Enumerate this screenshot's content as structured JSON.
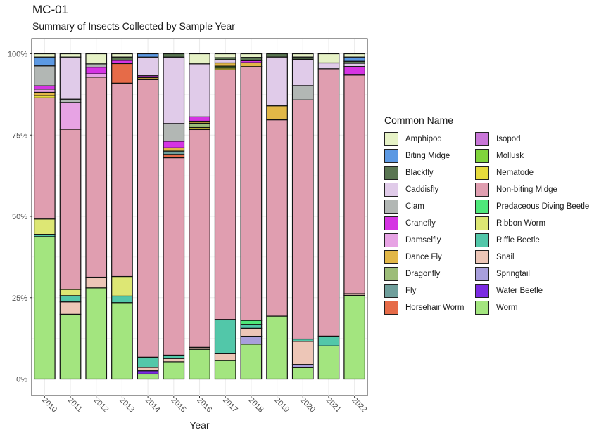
{
  "chart_data": {
    "type": "bar",
    "stacked": "percent",
    "title": "MC-01",
    "subtitle": "Summary of Insects Collected by Sample Year",
    "xlabel": "Year",
    "ylabel": "",
    "ylim": [
      0,
      1
    ],
    "yticks": [
      "0%",
      "25%",
      "50%",
      "75%",
      "100%"
    ],
    "legend_title": "Common Name",
    "legend_position": "right",
    "categories": [
      "2010",
      "2011",
      "2012",
      "2013",
      "2014",
      "2015",
      "2016",
      "2017",
      "2018",
      "2019",
      "2020",
      "2021",
      "2022"
    ],
    "series": [
      {
        "name": "Worm",
        "color": "#a3e57f",
        "values": [
          43.5,
          19.8,
          27.2,
          23.4,
          1.5,
          5.2,
          8.9,
          5.7,
          10.6,
          19.3,
          3.5,
          10.2,
          25.6
        ]
      },
      {
        "name": "Water Beetle",
        "color": "#7b2be2",
        "values": [
          0,
          0,
          0,
          0,
          1,
          0,
          0,
          0,
          0,
          0,
          0,
          0,
          0
        ]
      },
      {
        "name": "Springtail",
        "color": "#a89fdc",
        "values": [
          0,
          0,
          0,
          0,
          0,
          0,
          0,
          0,
          2.4,
          0,
          1,
          0,
          0
        ]
      },
      {
        "name": "Snail",
        "color": "#edc6b7",
        "values": [
          0,
          3.8,
          3.2,
          0,
          1,
          1,
          0.6,
          2.1,
          2.4,
          0,
          7.1,
          0,
          0.5
        ]
      },
      {
        "name": "Riffle Beetle",
        "color": "#52c7a9",
        "values": [
          0.7,
          1.9,
          0,
          2,
          3.1,
          1,
          0,
          10.5,
          1.2,
          0,
          0.7,
          3,
          0
        ]
      },
      {
        "name": "Ribbon Worm",
        "color": "#dde774",
        "values": [
          4.7,
          1.9,
          0,
          6,
          0,
          0,
          0,
          0,
          0,
          0,
          0,
          0,
          0
        ]
      },
      {
        "name": "Predaceous Diving Beetle",
        "color": "#4ee87a",
        "values": [
          0,
          0,
          0,
          0,
          0,
          0,
          0,
          0,
          1.2,
          0,
          0,
          0,
          0
        ]
      },
      {
        "name": "Non-biting Midge",
        "color": "#e09eb0",
        "values": [
          37,
          49,
          59.7,
          59.2,
          83.6,
          59.4,
          65.2,
          76.7,
          77.1,
          60.3,
          73.5,
          82.2,
          66.9
        ]
      },
      {
        "name": "Nematode",
        "color": "#e6db3d",
        "values": [
          0.7,
          0,
          0,
          0,
          0,
          0,
          0.6,
          0.5,
          0,
          0,
          0,
          0,
          0
        ]
      },
      {
        "name": "Mollusk",
        "color": "#80d43c",
        "values": [
          0,
          0,
          0,
          0,
          0,
          0,
          0,
          0.6,
          0,
          0,
          0,
          0,
          0
        ]
      },
      {
        "name": "Isopod",
        "color": "#c976d8",
        "values": [
          0,
          0,
          0,
          0,
          0,
          0,
          0,
          0,
          0,
          0,
          0,
          0,
          0
        ]
      },
      {
        "name": "Horsehair Worm",
        "color": "#e66b48",
        "values": [
          0,
          0,
          0,
          6,
          0,
          1,
          0,
          0,
          0,
          0,
          0,
          0,
          0
        ]
      },
      {
        "name": "Fly",
        "color": "#6f9f9c",
        "values": [
          0,
          0,
          0,
          0,
          0,
          1,
          0,
          0,
          0,
          0,
          0,
          0,
          0
        ]
      },
      {
        "name": "Dragonfly",
        "color": "#9dbd79",
        "values": [
          0,
          0,
          0,
          0,
          0,
          0,
          1.3,
          0,
          0,
          0,
          0,
          0,
          0
        ]
      },
      {
        "name": "Dance Fly",
        "color": "#e2b747",
        "values": [
          1,
          0,
          0,
          0,
          0.6,
          1,
          0.6,
          1,
          1.2,
          4.3,
          0,
          0,
          0
        ]
      },
      {
        "name": "Damselfly",
        "color": "#e7a3e4",
        "values": [
          1,
          8.2,
          1,
          0,
          0,
          0,
          0,
          0,
          0,
          0,
          0,
          0,
          0
        ]
      },
      {
        "name": "Cranefly",
        "color": "#d534e3",
        "values": [
          1,
          0,
          2,
          1,
          0.6,
          2,
          1.3,
          0,
          0.6,
          0,
          0,
          0,
          2.6
        ]
      },
      {
        "name": "Clam",
        "color": "#b2b7b4",
        "values": [
          6.1,
          1,
          1,
          0,
          0,
          5.3,
          0,
          0,
          0,
          0,
          4.4,
          0,
          0
        ]
      },
      {
        "name": "Caddisfly",
        "color": "#e0cbe9",
        "values": [
          0,
          12.9,
          0,
          0,
          5.6,
          20,
          15.9,
          1,
          0,
          15,
          8.1,
          1.8,
          1
        ]
      },
      {
        "name": "Blackfly",
        "color": "#5a7652",
        "values": [
          0,
          0,
          0,
          1,
          0,
          1,
          0,
          0.6,
          1,
          1,
          0.7,
          0,
          0.6
        ]
      },
      {
        "name": "Biting Midge",
        "color": "#5c99e3",
        "values": [
          2.7,
          0,
          0,
          0,
          1,
          0,
          0,
          0,
          0,
          0,
          0,
          0,
          1.3
        ]
      },
      {
        "name": "Amphipod",
        "color": "#e6f2c6",
        "values": [
          1,
          1,
          3,
          1,
          0,
          0,
          3,
          1.2,
          1.1,
          0,
          1,
          2.8,
          1
        ]
      }
    ]
  }
}
